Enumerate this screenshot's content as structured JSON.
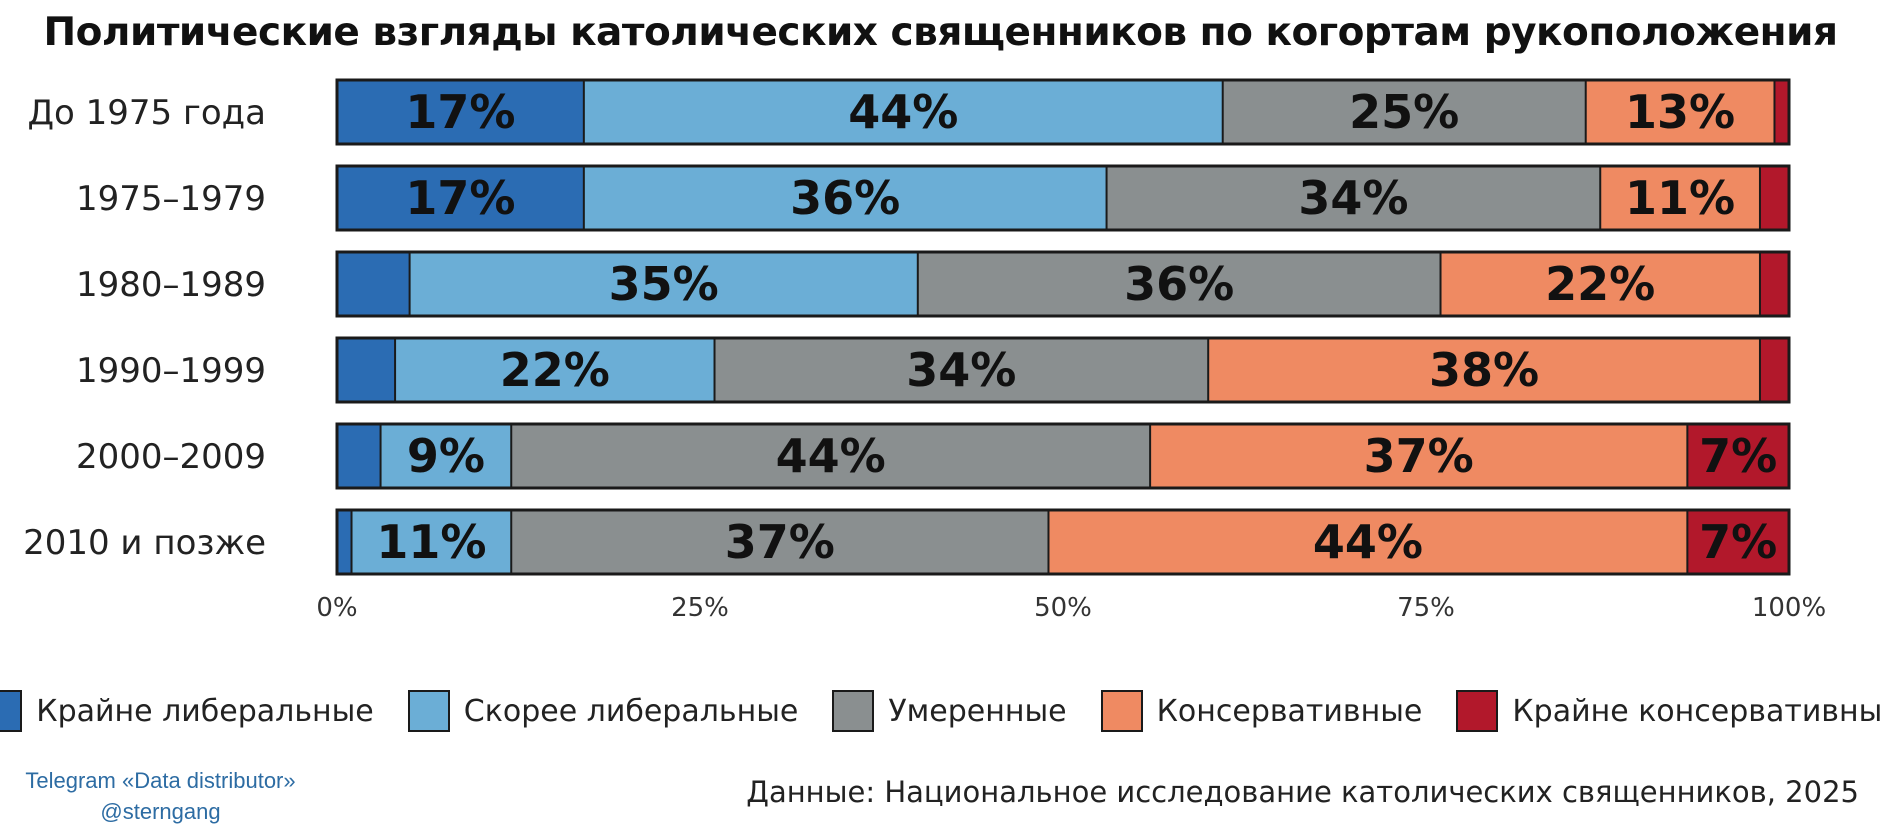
{
  "chart_data": {
    "type": "bar",
    "orientation": "horizontal",
    "stacked": true,
    "title": "Политические взгляды католических священников по когортам рукоположения",
    "categories": [
      "До 1975 года",
      "1975–1979",
      "1980–1989",
      "1990–1999",
      "2000–2009",
      "2010 и позже"
    ],
    "series": [
      {
        "name": "Крайне либеральные",
        "color": "#2b6cb3",
        "values": [
          17,
          17,
          5,
          4,
          3,
          1
        ]
      },
      {
        "name": "Скорее либеральные",
        "color": "#6baed6",
        "values": [
          44,
          36,
          35,
          22,
          9,
          11
        ]
      },
      {
        "name": "Умеренные",
        "color": "#8a8f90",
        "values": [
          25,
          34,
          36,
          34,
          44,
          37
        ]
      },
      {
        "name": "Консервативные",
        "color": "#ef8a62",
        "values": [
          13,
          11,
          22,
          38,
          37,
          44
        ]
      },
      {
        "name": "Крайне консервативные",
        "color": "#b2182b",
        "values": [
          1,
          2,
          2,
          2,
          7,
          7
        ]
      }
    ],
    "data_labels": [
      [
        "17%",
        "44%",
        "25%",
        "13%",
        ""
      ],
      [
        "17%",
        "36%",
        "34%",
        "11%",
        ""
      ],
      [
        "",
        "35%",
        "36%",
        "22%",
        ""
      ],
      [
        "",
        "22%",
        "34%",
        "38%",
        ""
      ],
      [
        "",
        "9%",
        "44%",
        "37%",
        "7%"
      ],
      [
        "",
        "11%",
        "37%",
        "44%",
        "7%"
      ]
    ],
    "xlim": [
      0,
      100
    ],
    "x_ticks": [
      0,
      25,
      50,
      75,
      100
    ],
    "x_tick_labels": [
      "0%",
      "25%",
      "50%",
      "75%",
      "100%"
    ],
    "grid": false,
    "legend": "bottom"
  },
  "footer": {
    "credit_line1": "Telegram «Data distributor»",
    "credit_line2": "@sterngang",
    "source": "Данные: Национальное исследование католических священников, 2025"
  }
}
